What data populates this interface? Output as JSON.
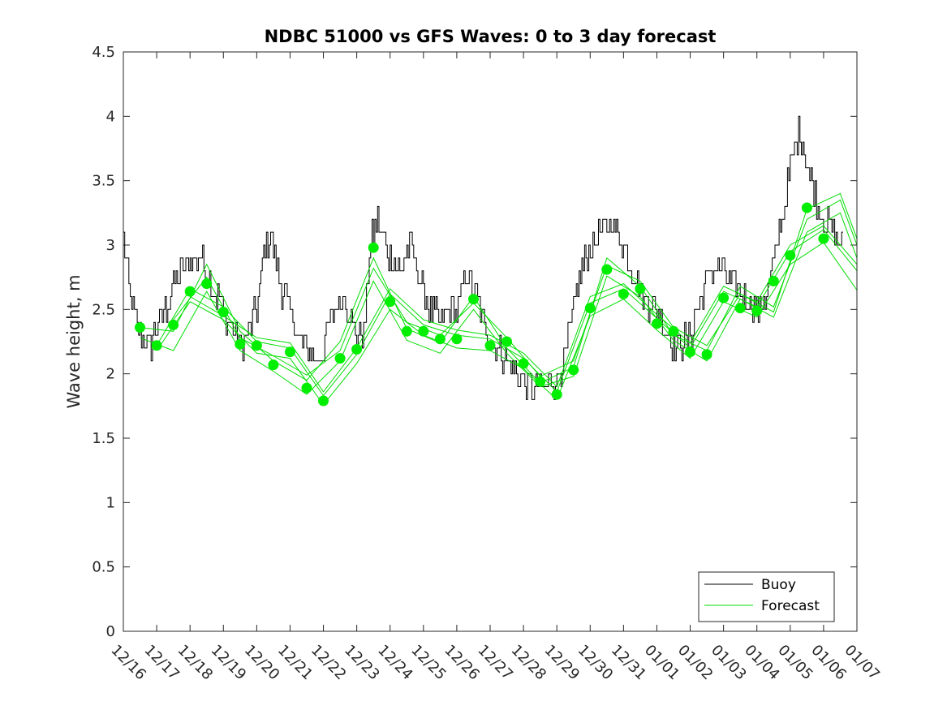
{
  "chart_data": {
    "type": "line",
    "title": "NDBC 51000 vs GFS Waves: 0 to 3 day forecast",
    "xlabel": "",
    "ylabel": "Wave height, m",
    "x_unit": "days since 12/16",
    "xlim": [
      0,
      22
    ],
    "ylim": [
      0,
      4.5
    ],
    "yticks": [
      0,
      0.5,
      1,
      1.5,
      2,
      2.5,
      3,
      3.5,
      4,
      4.5
    ],
    "ytick_labels": [
      "0",
      "0.5",
      "1",
      "1.5",
      "2",
      "2.5",
      "3",
      "3.5",
      "4",
      "4.5"
    ],
    "xtick_labels": [
      "12/16",
      "12/17",
      "12/18",
      "12/19",
      "12/20",
      "12/21",
      "12/22",
      "12/23",
      "12/24",
      "12/25",
      "12/26",
      "12/27",
      "12/28",
      "12/29",
      "12/30",
      "12/31",
      "01/01",
      "01/02",
      "01/03",
      "01/04",
      "01/05",
      "01/06",
      "01/07"
    ],
    "legend": {
      "location": "bottom-right",
      "entries": [
        {
          "label": "Buoy",
          "color": "#000000"
        },
        {
          "label": "Forecast",
          "color": "#00dd00"
        }
      ]
    },
    "colors": {
      "buoy": "#000000",
      "forecast": "#00dd00",
      "marker": "#00ee00"
    },
    "buoy_anchor_points": {
      "x": [
        0,
        0.2,
        0.5,
        0.8,
        1.0,
        1.3,
        1.5,
        1.8,
        2.0,
        2.3,
        2.6,
        3.0,
        3.3,
        3.6,
        4.0,
        4.2,
        4.4,
        4.7,
        5.0,
        5.2,
        5.5,
        5.8,
        6.0,
        6.3,
        6.6,
        7.0,
        7.2,
        7.4,
        7.6,
        8.0,
        8.3,
        8.6,
        8.9,
        9.2,
        9.5,
        9.8,
        10.0,
        10.3,
        10.6,
        10.9,
        11.2,
        11.5,
        11.8,
        12.0,
        12.3,
        12.6,
        13.0,
        13.3,
        13.6,
        14.0,
        14.3,
        14.6,
        15.0,
        15.3,
        15.6,
        16.0,
        16.3,
        16.6,
        17.0,
        17.3,
        17.6,
        18.0,
        18.3,
        18.6,
        19.0,
        19.3,
        19.6,
        20.0,
        20.3,
        20.6,
        21.0,
        21.3,
        21.6
      ],
      "y": [
        3.1,
        2.6,
        2.3,
        2.2,
        2.4,
        2.5,
        2.7,
        2.8,
        2.9,
        2.9,
        2.7,
        2.5,
        2.3,
        2.2,
        2.5,
        2.9,
        3.1,
        2.7,
        2.5,
        2.3,
        2.2,
        2.1,
        2.2,
        2.5,
        2.6,
        2.3,
        2.3,
        3.0,
        3.2,
        2.9,
        2.8,
        3.0,
        2.7,
        2.5,
        2.4,
        2.5,
        2.5,
        2.8,
        2.6,
        2.3,
        2.2,
        2.1,
        2.0,
        1.95,
        1.9,
        1.9,
        1.95,
        2.2,
        2.7,
        3.0,
        3.1,
        3.2,
        3.0,
        2.8,
        2.6,
        2.5,
        2.3,
        2.2,
        2.3,
        2.6,
        2.8,
        2.8,
        2.7,
        2.6,
        2.5,
        2.6,
        3.0,
        3.6,
        3.9,
        3.5,
        3.2,
        3.1,
        3.0
      ]
    },
    "buoy_noise_amplitude_m": 0.12,
    "forecast_points": {
      "x": [
        0.5,
        1.0,
        1.5,
        2.0,
        2.5,
        3.0,
        3.5,
        4.0,
        4.5,
        5.0,
        5.5,
        6.0,
        6.5,
        7.0,
        7.5,
        8.0,
        8.5,
        9.0,
        9.5,
        10.0,
        10.5,
        11.0,
        11.5,
        12.0,
        12.5,
        13.0,
        13.5,
        14.0,
        14.5,
        15.0,
        15.5,
        16.0,
        16.5,
        17.0,
        17.5,
        18.0,
        18.5,
        19.0,
        19.5,
        20.0,
        20.5,
        21.0
      ],
      "y": [
        2.36,
        2.22,
        2.38,
        2.64,
        2.7,
        2.48,
        2.23,
        2.22,
        2.07,
        2.17,
        1.89,
        1.79,
        2.12,
        2.19,
        2.98,
        2.56,
        2.33,
        2.33,
        2.27,
        2.27,
        2.58,
        2.22,
        2.25,
        2.08,
        1.94,
        1.84,
        2.03,
        2.51,
        2.81,
        2.62,
        2.66,
        2.39,
        2.33,
        2.17,
        2.15,
        2.59,
        2.51,
        2.49,
        2.72,
        2.92,
        3.29,
        3.05
      ]
    },
    "forecast_series": [
      {
        "name": "Forecast run 1",
        "x": [
          0.5,
          1.5,
          2.5,
          3.5,
          4.5,
          5.5,
          6.5,
          7.5,
          8.5,
          9.5,
          10.5,
          11.5,
          12.5,
          13.5,
          14.5,
          15.5,
          16.5,
          17.5,
          18.5,
          19.5,
          20.5,
          21.5,
          22
        ],
        "y": [
          2.36,
          2.33,
          2.85,
          2.33,
          2.1,
          1.95,
          2.25,
          2.9,
          2.35,
          2.24,
          2.6,
          2.2,
          1.93,
          2.05,
          2.9,
          2.68,
          2.3,
          2.18,
          2.68,
          2.52,
          3.2,
          3.35,
          3.0
        ]
      },
      {
        "name": "Forecast run 2",
        "x": [
          1.0,
          2.0,
          3.0,
          4.0,
          5.0,
          6.0,
          7.0,
          8.0,
          9.0,
          10.0,
          11.0,
          12.0,
          13.0,
          14.0,
          15.0,
          16.0,
          17.0,
          18.0,
          19.0,
          20.0,
          21.0,
          22
        ],
        "y": [
          2.22,
          2.66,
          2.52,
          2.25,
          2.2,
          1.83,
          2.15,
          2.62,
          2.38,
          2.3,
          2.27,
          2.12,
          1.86,
          2.55,
          2.66,
          2.43,
          2.2,
          2.64,
          2.52,
          2.95,
          3.12,
          2.8
        ]
      },
      {
        "name": "Forecast run 3",
        "x": [
          0.5,
          1.5,
          2.5,
          3.5,
          4.5,
          5.5,
          6.5,
          7.5,
          8.5,
          9.5,
          10.5,
          11.5,
          12.5,
          13.5,
          14.5,
          15.5,
          16.5,
          17.5,
          18.5,
          19.5,
          20.5,
          21.5,
          22
        ],
        "y": [
          2.28,
          2.18,
          2.64,
          2.18,
          2.02,
          1.84,
          2.1,
          2.72,
          2.26,
          2.16,
          2.5,
          2.16,
          1.9,
          1.98,
          2.76,
          2.6,
          2.26,
          2.1,
          2.58,
          2.44,
          3.1,
          3.25,
          2.9
        ]
      },
      {
        "name": "Forecast run 4",
        "x": [
          1.0,
          2.0,
          3.0,
          4.0,
          5.0,
          6.0,
          7.0,
          8.0,
          9.0,
          10.0,
          11.0,
          12.0,
          13.0,
          14.0,
          15.0,
          16.0,
          17.0,
          18.0,
          19.0,
          20.0,
          21.0,
          22
        ],
        "y": [
          2.18,
          2.56,
          2.42,
          2.16,
          2.12,
          1.76,
          2.08,
          2.5,
          2.3,
          2.2,
          2.18,
          2.04,
          1.8,
          2.45,
          2.58,
          2.34,
          2.12,
          2.56,
          2.44,
          2.85,
          3.02,
          2.65
        ]
      },
      {
        "name": "Forecast run 5",
        "x": [
          1.5,
          2.5,
          3.5,
          4.5,
          5.5,
          6.5,
          7.5,
          8.5,
          9.5,
          10.5,
          11.5,
          12.5,
          13.5,
          14.5,
          15.5,
          16.5,
          17.5,
          18.5,
          19.5,
          20.5,
          21.5,
          22
        ],
        "y": [
          2.42,
          2.75,
          2.28,
          2.14,
          1.99,
          2.18,
          2.82,
          2.4,
          2.3,
          2.55,
          2.28,
          1.98,
          2.1,
          2.84,
          2.72,
          2.36,
          2.22,
          2.62,
          2.48,
          3.28,
          3.4,
          3.05
        ]
      },
      {
        "name": "Forecast run 6",
        "x": [
          2.0,
          3.0,
          4.0,
          5.0,
          6.0,
          7.0,
          8.0,
          9.0,
          10.0,
          11.0,
          12.0,
          13.0,
          14.0,
          15.0,
          16.0,
          17.0,
          18.0,
          19.0,
          20.0,
          21.0,
          22
        ],
        "y": [
          2.6,
          2.45,
          2.28,
          2.24,
          1.86,
          2.2,
          2.66,
          2.42,
          2.34,
          2.3,
          2.16,
          1.9,
          2.6,
          2.7,
          2.46,
          2.24,
          2.68,
          2.56,
          3.0,
          3.15,
          2.85
        ]
      }
    ]
  }
}
